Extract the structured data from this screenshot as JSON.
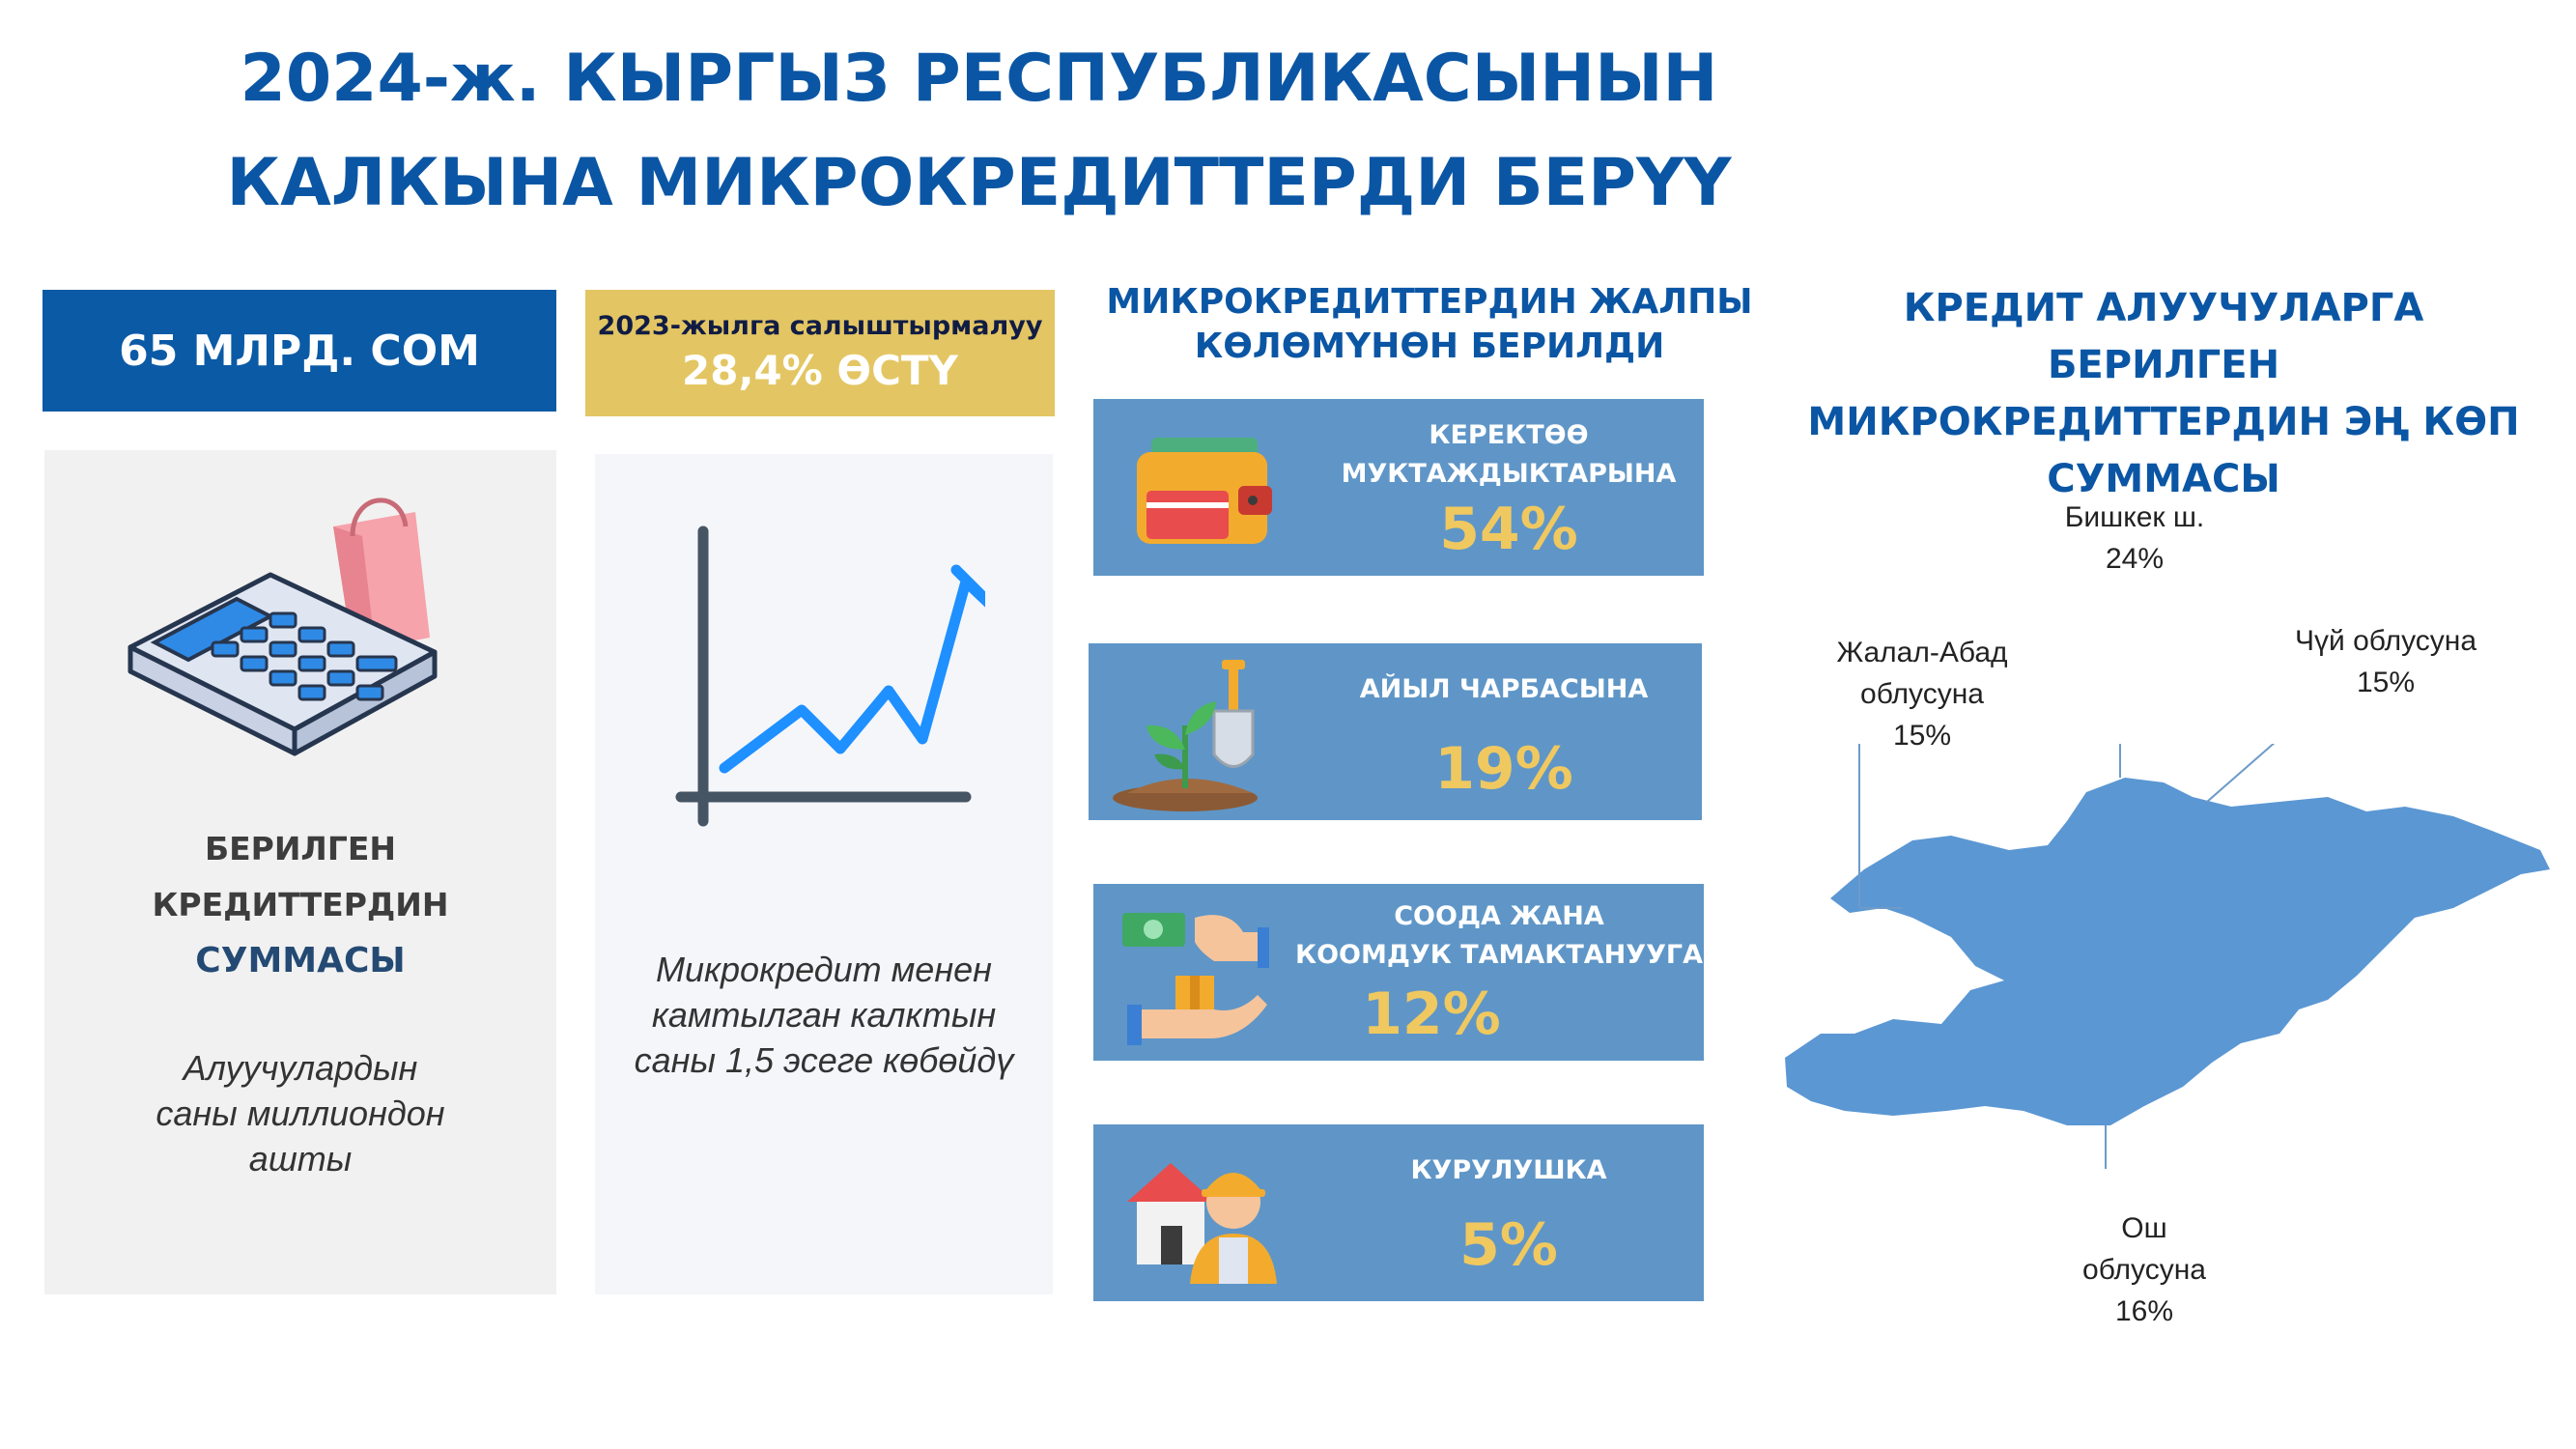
{
  "title": {
    "line1": "2024-ж. КЫРГЫЗ РЕСПУБЛИКАСЫНЫН",
    "line2": "КАЛКЫНА МИКРОКРЕДИТТЕРДИ БЕРҮҮ"
  },
  "total": {
    "amount": "65 МЛРД. СОМ"
  },
  "growth": {
    "caption": "2023-жылга салыштырмалуу",
    "value": "28,4% ӨСТҮ"
  },
  "panel_sum": {
    "heading_line1": "БЕРИЛГЕН",
    "heading_line2": "КРЕДИТТЕРДИН",
    "heading_line3": "СУММАСЫ",
    "note_line1": "Алуучулардын",
    "note_line2": "саны миллиондон",
    "note_line3": "ашты"
  },
  "panel_growth": {
    "note_line1": "Микрокредит менен",
    "note_line2": "камтылган калктын",
    "note_line3": "саны 1,5 эсеге көбөйдү"
  },
  "categories": {
    "title_line1": "МИКРОКРЕДИТТЕРДИН ЖАЛПЫ",
    "title_line2": "КӨЛӨМҮНӨН БЕРИЛДИ",
    "items": [
      {
        "label_line1": "КЕРЕКТӨӨ",
        "label_line2": "МУКТАЖДЫКТАРЫНА",
        "percent": "54%"
      },
      {
        "label_line1": "АЙЫЛ ЧАРБАСЫНА",
        "label_line2": "",
        "percent": "19%"
      },
      {
        "label_line1": "СООДА ЖАНА",
        "label_line2": "КООМДУК ТАМАКТАНУУГА",
        "percent": "12%"
      },
      {
        "label_line1": "КУРУЛУШКА",
        "label_line2": "",
        "percent": "5%"
      }
    ]
  },
  "regions": {
    "title_line1": "КРЕДИТ АЛУУЧУЛАРГА БЕРИЛГЕН",
    "title_line2": "МИКРОКРЕДИТТЕРДИН ЭҢ КӨП",
    "title_line3": "СУММАСЫ",
    "items": [
      {
        "name_line1": "Бишкек ш.",
        "name_line2": "",
        "percent": "24%"
      },
      {
        "name_line1": "Жалал-Абад",
        "name_line2": "облусуна",
        "percent": "15%"
      },
      {
        "name_line1": "Чүй облусуна",
        "name_line2": "",
        "percent": "15%"
      },
      {
        "name_line1": "Ош",
        "name_line2": "облусуна",
        "percent": "16%"
      }
    ]
  },
  "colors": {
    "brand_blue": "#0b56a4",
    "gold": "#e3c663",
    "category_box": "#5f96c7",
    "percent_gold": "#f0c860",
    "map_fill": "#5b97d3"
  }
}
